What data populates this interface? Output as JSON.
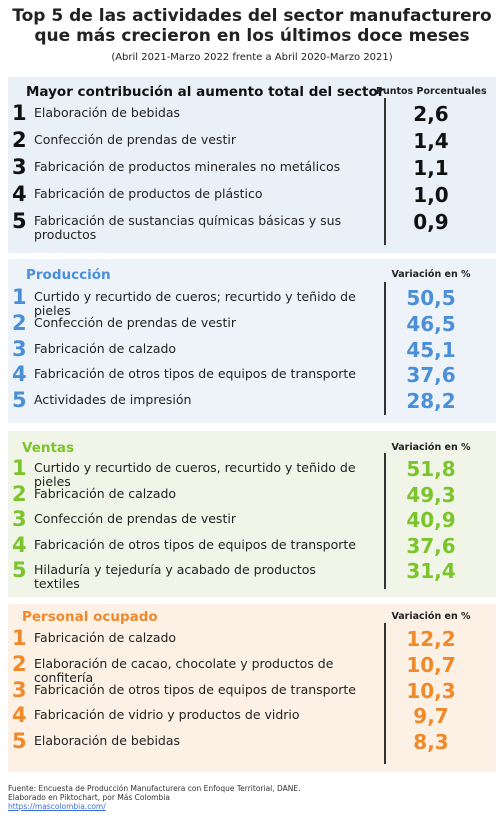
{
  "header": {
    "title": "Top 5 de las actividades del sector manufacturero que más crecieron en los últimos doce meses",
    "subtitle": "(Abril 2021-Marzo 2022  frente a  Abril 2020-Marzo 2021)"
  },
  "sections": [
    {
      "title": "Mayor contribución al aumento total del sector",
      "column": "Puntos Porcentuales",
      "rows": [
        {
          "rank": 1,
          "label": "Elaboración de bebidas",
          "value": "2,6"
        },
        {
          "rank": 2,
          "label": "Confección de prendas de vestir",
          "value": "1,4"
        },
        {
          "rank": 3,
          "label": "Fabricación de productos minerales no metálicos",
          "value": "1,1"
        },
        {
          "rank": 4,
          "label": "Fabricación de productos de plástico",
          "value": "1,0"
        },
        {
          "rank": 5,
          "label": "Fabricación de sustancias químicas básicas y sus productos",
          "value": "0,9"
        }
      ]
    },
    {
      "title": "Producción",
      "column": "Variación en %",
      "rows": [
        {
          "rank": 1,
          "label": "Curtido y recurtido de cueros; recurtido y teñido de pieles",
          "value": "50,5"
        },
        {
          "rank": 2,
          "label": "Confección de prendas de vestir",
          "value": "46,5"
        },
        {
          "rank": 3,
          "label": "Fabricación de calzado",
          "value": "45,1"
        },
        {
          "rank": 4,
          "label": "Fabricación de otros tipos de equipos de transporte",
          "value": "37,6"
        },
        {
          "rank": 5,
          "label": "Actividades de impresión",
          "value": "28,2"
        }
      ]
    },
    {
      "title": "Ventas",
      "column": "Variación en %",
      "rows": [
        {
          "rank": 1,
          "label": "Curtido y recurtido de cueros, recurtido y teñido de pieles",
          "value": "51,8"
        },
        {
          "rank": 2,
          "label": "Fabricación de calzado",
          "value": "49,3"
        },
        {
          "rank": 3,
          "label": "Confección de prendas de vestir",
          "value": "40,9"
        },
        {
          "rank": 4,
          "label": "Fabricación de otros tipos de equipos de transporte",
          "value": "37,6"
        },
        {
          "rank": 5,
          "label": "Hiladuría y tejeduría y acabado de productos textiles",
          "value": "31,4"
        }
      ]
    },
    {
      "title": "Personal ocupado",
      "column": "Variación en %",
      "rows": [
        {
          "rank": 1,
          "label": "Fabricación de calzado",
          "value": "12,2"
        },
        {
          "rank": 2,
          "label": "Elaboración de cacao, chocolate y productos de confitería",
          "value": "10,7"
        },
        {
          "rank": 3,
          "label": "Fabricación de otros tipos de equipos de transporte",
          "value": "10,3"
        },
        {
          "rank": 4,
          "label": "Fabricación de vidrio y productos de vidrio",
          "value": "9,7"
        },
        {
          "rank": 5,
          "label": "Elaboración de bebidas",
          "value": "8,3"
        }
      ]
    }
  ],
  "footer": {
    "source": "Fuente: Encuesta de Producción Manufacturera con Enfoque Territorial, DANE.",
    "made": "Elaborado en Piktochart, por Más Colombia",
    "link": "https://mascolombia.com/"
  }
}
